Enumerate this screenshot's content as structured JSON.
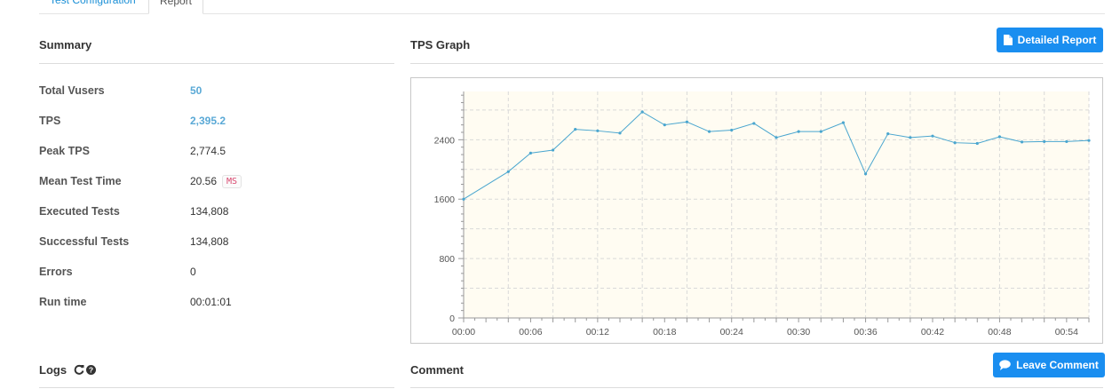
{
  "tabs": [
    {
      "label": "Test Configuration",
      "active": false
    },
    {
      "label": "Report",
      "active": true
    }
  ],
  "summary": {
    "title": "Summary",
    "rows": [
      {
        "label": "Total Vusers",
        "value": "50",
        "link": true
      },
      {
        "label": "TPS",
        "value": "2,395.2",
        "link": true
      },
      {
        "label": "Peak TPS",
        "value": "2,774.5",
        "link": false
      },
      {
        "label": "Mean Test Time",
        "value": "20.56",
        "link": false,
        "badge": "MS"
      },
      {
        "label": "Executed Tests",
        "value": "134,808",
        "link": false
      },
      {
        "label": "Successful Tests",
        "value": "134,808",
        "link": false
      },
      {
        "label": "Errors",
        "value": "0",
        "link": false
      },
      {
        "label": "Run time",
        "value": "00:01:01",
        "link": false
      }
    ]
  },
  "tps_graph": {
    "title": "TPS Graph",
    "detailed_report_label": "Detailed Report",
    "icon": "file-icon"
  },
  "logs": {
    "title": "Logs",
    "icons": [
      "refresh-icon",
      "help-icon"
    ]
  },
  "comment": {
    "title": "Comment",
    "leave_comment_label": "Leave Comment",
    "icon": "comment-icon"
  },
  "colors": {
    "accent": "#1a8ef0",
    "link": "#5aa9d6",
    "line": "#4aa6cf",
    "plot_bg": "#fffcf2",
    "badge": "#d9486f"
  },
  "chart_data": {
    "type": "line",
    "x": [
      "00:00",
      "00:04",
      "00:06",
      "00:08",
      "00:10",
      "00:12",
      "00:14",
      "00:16",
      "00:18",
      "00:20",
      "00:22",
      "00:24",
      "00:26",
      "00:28",
      "00:30",
      "00:32",
      "00:34",
      "00:36",
      "00:38",
      "00:40",
      "00:42",
      "00:44",
      "00:46",
      "00:48",
      "00:50",
      "00:52",
      "00:54",
      "00:56"
    ],
    "series": [
      {
        "values": [
          1600,
          1970,
          2220,
          2260,
          2540,
          2520,
          2490,
          2775,
          2600,
          2640,
          2510,
          2530,
          2620,
          2430,
          2510,
          2510,
          2630,
          1940,
          2480,
          2430,
          2450,
          2360,
          2350,
          2440,
          2370,
          2375,
          2375,
          2390
        ]
      }
    ],
    "xticks": [
      "00:00",
      "00:06",
      "00:12",
      "00:18",
      "00:24",
      "00:30",
      "00:36",
      "00:42",
      "00:48",
      "00:54"
    ],
    "yticks": [
      0,
      800,
      1600,
      2400
    ],
    "xlim_seconds": [
      0,
      56
    ],
    "ylim": [
      0,
      3050
    ],
    "grid": true,
    "xlabel": "",
    "ylabel": "",
    "title": ""
  }
}
